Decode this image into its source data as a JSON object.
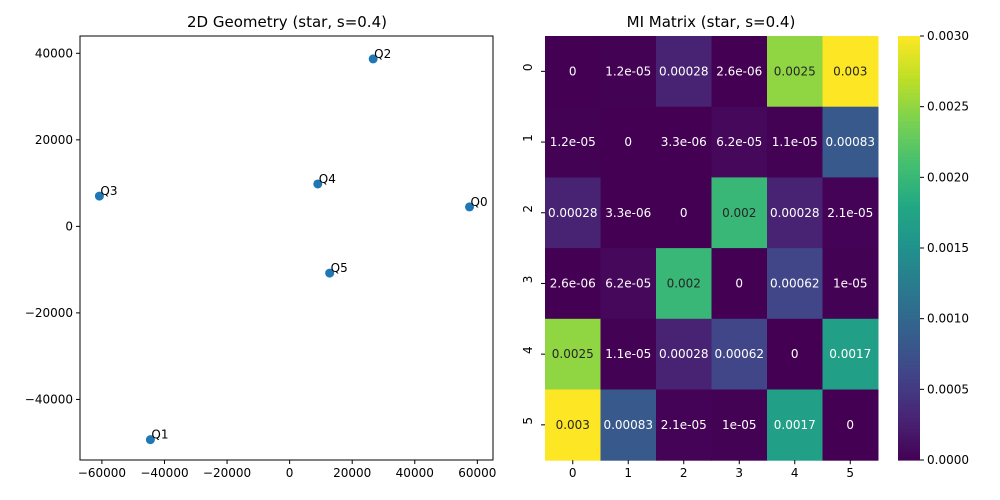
{
  "chart_data": [
    {
      "type": "scatter",
      "title": "2D Geometry (star, s=0.4)",
      "xlabel": "",
      "ylabel": "",
      "xlim": [
        -67000,
        65000
      ],
      "ylim": [
        -54000,
        44000
      ],
      "xticks": [
        -60000,
        -40000,
        -20000,
        0,
        20000,
        40000,
        60000
      ],
      "yticks": [
        -40000,
        -20000,
        0,
        20000,
        40000
      ],
      "xtick_labels": [
        "−60000",
        "−40000",
        "−20000",
        "0",
        "20000",
        "40000",
        "60000"
      ],
      "ytick_labels": [
        "−40000",
        "−20000",
        "0",
        "20000",
        "40000"
      ],
      "point_color": "#1f77b4",
      "points": [
        {
          "label": "Q0",
          "x": 57500,
          "y": 4500
        },
        {
          "label": "Q1",
          "x": -44500,
          "y": -49300
        },
        {
          "label": "Q2",
          "x": 26700,
          "y": 38700
        },
        {
          "label": "Q3",
          "x": -60800,
          "y": 7000
        },
        {
          "label": "Q4",
          "x": 9000,
          "y": 9800
        },
        {
          "label": "Q5",
          "x": 12800,
          "y": -10800
        }
      ]
    },
    {
      "type": "heatmap",
      "title": "MI Matrix (star, s=0.4)",
      "colormap": "viridis",
      "vmin": 0,
      "vmax": 0.003,
      "row_labels": [
        "0",
        "1",
        "2",
        "3",
        "4",
        "5"
      ],
      "col_labels": [
        "0",
        "1",
        "2",
        "3",
        "4",
        "5"
      ],
      "values": [
        [
          0,
          1.2e-05,
          0.00028,
          2.6e-06,
          0.0025,
          0.003
        ],
        [
          1.2e-05,
          0,
          3.3e-06,
          6.2e-05,
          1.1e-05,
          0.00083
        ],
        [
          0.00028,
          3.3e-06,
          0,
          0.002,
          0.00028,
          2.1e-05
        ],
        [
          2.6e-06,
          6.2e-05,
          0.002,
          0,
          0.00062,
          1e-05
        ],
        [
          0.0025,
          1.1e-05,
          0.00028,
          0.00062,
          0,
          0.0017
        ],
        [
          0.003,
          0.00083,
          2.1e-05,
          1e-05,
          0.0017,
          0
        ]
      ],
      "annotations": [
        [
          "0",
          "1.2e-05",
          "0.00028",
          "2.6e-06",
          "0.0025",
          "0.003"
        ],
        [
          "1.2e-05",
          "0",
          "3.3e-06",
          "6.2e-05",
          "1.1e-05",
          "0.00083"
        ],
        [
          "0.00028",
          "3.3e-06",
          "0",
          "0.002",
          "0.00028",
          "2.1e-05"
        ],
        [
          "2.6e-06",
          "6.2e-05",
          "0.002",
          "0",
          "0.00062",
          "1e-05"
        ],
        [
          "0.0025",
          "1.1e-05",
          "0.00028",
          "0.00062",
          "0",
          "0.0017"
        ],
        [
          "0.003",
          "0.00083",
          "2.1e-05",
          "1e-05",
          "0.0017",
          "0"
        ]
      ],
      "colorbar_ticks": [
        0,
        0.0005,
        0.001,
        0.0015,
        0.002,
        0.0025,
        0.003
      ],
      "colorbar_tick_labels": [
        "0.0000",
        "0.0005",
        "0.0010",
        "0.0015",
        "0.0020",
        "0.0025",
        "0.0030"
      ]
    }
  ]
}
